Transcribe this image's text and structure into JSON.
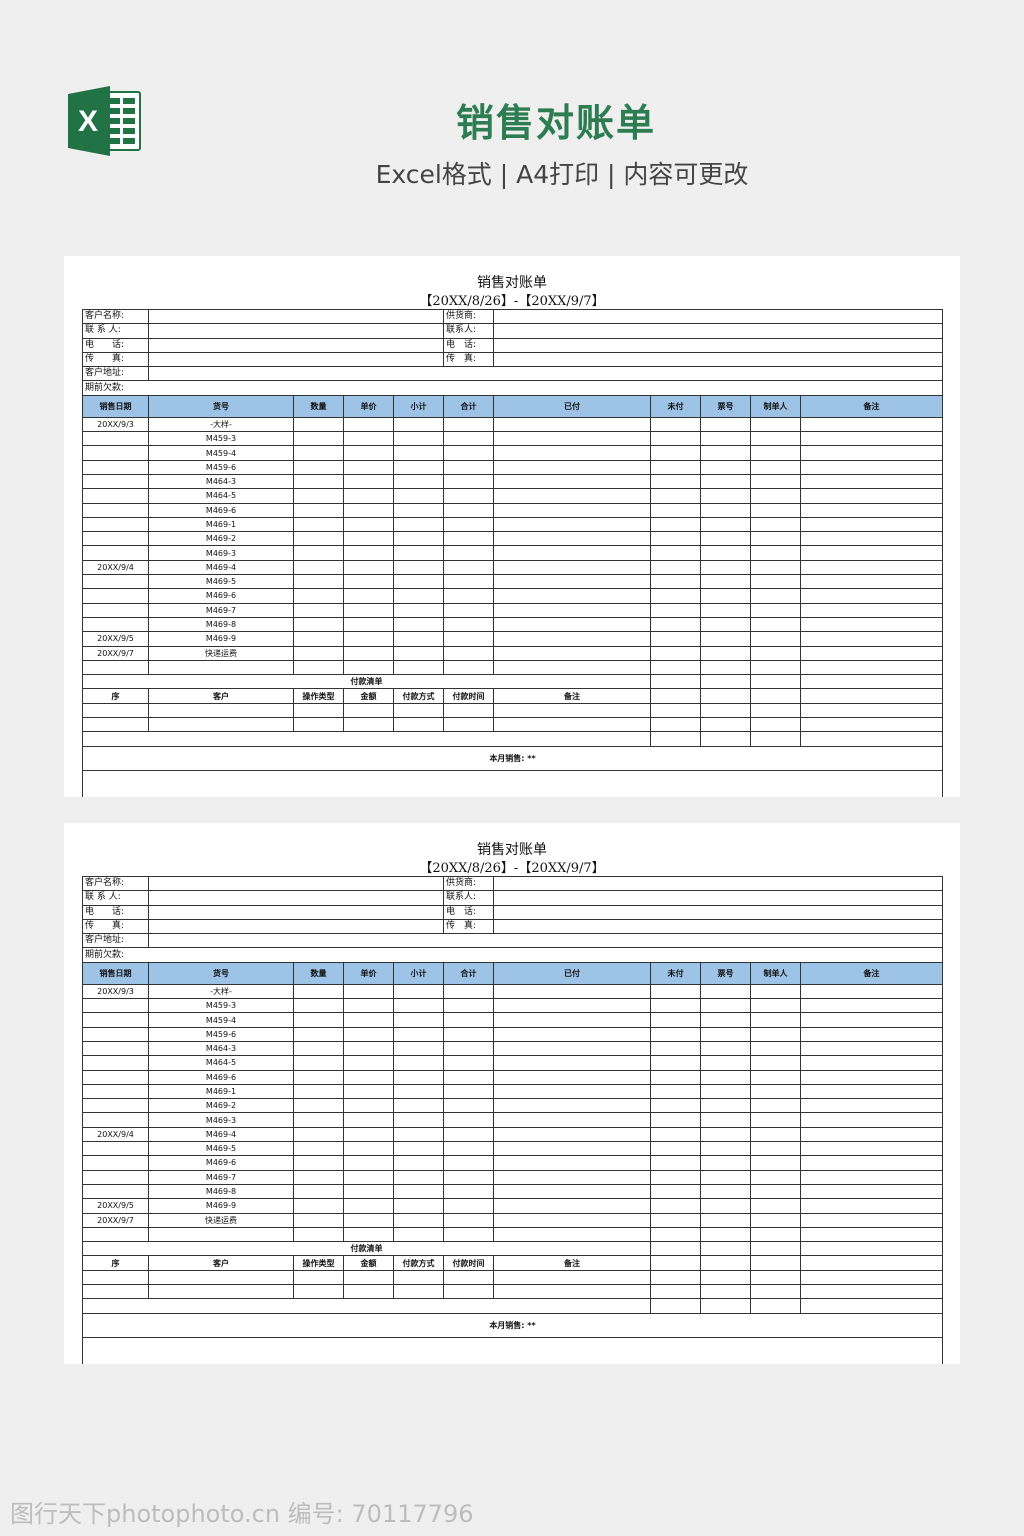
{
  "header": {
    "title": "销售对账单",
    "subtitle": "Excel格式 | A4打印 | 内容可更改",
    "logo_icon": "excel-icon",
    "title_color": "#2e7d52",
    "logo_color": "#217346"
  },
  "sheet": {
    "title": "销售对账单",
    "date_range": "【20XX/8/26】-【20XX/9/7】",
    "info_left": [
      "客户名称:",
      "联 系 人:",
      "电　　话:",
      "传　　真:"
    ],
    "info_right": [
      "供货商:",
      "联系人:",
      "电　话:",
      "传　真:"
    ],
    "address_label": "客户地址:",
    "prior_debt_label": "期前欠款:",
    "columns": [
      "销售日期",
      "货号",
      "数量",
      "单价",
      "小计",
      "合计",
      "已付",
      "未付",
      "票号",
      "制单人",
      "备注"
    ],
    "header_color": "#9dc3e6",
    "rows": [
      {
        "date": "20XX/9/3",
        "item": "-大样-"
      },
      {
        "date": "",
        "item": "M459-3"
      },
      {
        "date": "",
        "item": "M459-4"
      },
      {
        "date": "",
        "item": "M459-6"
      },
      {
        "date": "",
        "item": "M464-3"
      },
      {
        "date": "",
        "item": "M464-5"
      },
      {
        "date": "",
        "item": "M469-6"
      },
      {
        "date": "",
        "item": "M469-1"
      },
      {
        "date": "",
        "item": "M469-2"
      },
      {
        "date": "",
        "item": "M469-3"
      },
      {
        "date": "20XX/9/4",
        "item": "M469-4"
      },
      {
        "date": "",
        "item": "M469-5"
      },
      {
        "date": "",
        "item": "M469-6"
      },
      {
        "date": "",
        "item": "M469-7"
      },
      {
        "date": "",
        "item": "M469-8"
      },
      {
        "date": "20XX/9/5",
        "item": "M469-9"
      },
      {
        "date": "20XX/9/7",
        "item": "快递运费"
      },
      {
        "date": "",
        "item": ""
      }
    ],
    "payment_title": "付款清单",
    "payment_columns": [
      "序",
      "客户",
      "操作类型",
      "金额",
      "付款方式",
      "付款时间",
      "备注"
    ],
    "monthly_sales": "本月销售: **"
  },
  "watermark": "图行天下photophoto.cn 编号: 70117796"
}
